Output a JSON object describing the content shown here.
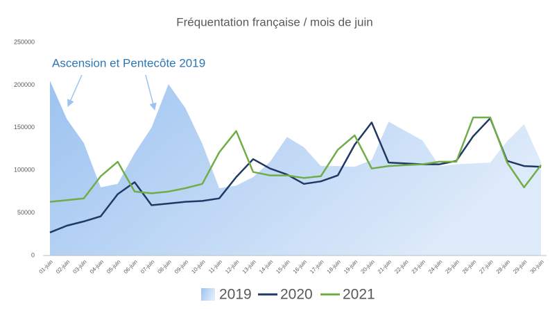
{
  "chart_data": {
    "type": "line",
    "title": "Fréquentation française /  mois de juin",
    "annotation": "Ascension et Pentecôte 2019",
    "categories": [
      "01-juin",
      "02-juin",
      "03-juin",
      "04-juin",
      "05-juin",
      "06-juin",
      "07-juin",
      "08-juin",
      "09-juin",
      "10-juin",
      "11-juin",
      "12-juin",
      "13-juin",
      "14-juin",
      "15-juin",
      "16-juin",
      "17-juin",
      "18-juin",
      "19-juin",
      "20-juin",
      "21-juin",
      "22-juin",
      "23-juin",
      "24-juin",
      "25-juin",
      "26-juin",
      "27-juin",
      "28-juin",
      "29-juin",
      "30-juin"
    ],
    "series": [
      {
        "name": "2019",
        "kind": "area",
        "color": "#9dc3f0",
        "values": [
          205000,
          160000,
          132000,
          80000,
          84000,
          120000,
          150000,
          201000,
          173000,
          131000,
          79000,
          82000,
          92000,
          110000,
          139000,
          127000,
          105000,
          105000,
          104000,
          112000,
          157000,
          146000,
          135000,
          105000,
          107000,
          108000,
          109000,
          134000,
          154000,
          110000
        ]
      },
      {
        "name": "2020",
        "kind": "line",
        "color": "#1f3864",
        "values": [
          27000,
          35000,
          40000,
          46000,
          72000,
          86000,
          59000,
          61000,
          63000,
          64000,
          67000,
          92000,
          113000,
          102000,
          95000,
          84000,
          87000,
          94000,
          130000,
          156000,
          109000,
          108000,
          107000,
          107000,
          111000,
          140000,
          161000,
          111000,
          105000,
          104000
        ]
      },
      {
        "name": "2021",
        "kind": "line",
        "color": "#70ad47",
        "values": [
          63000,
          65000,
          67000,
          93000,
          110000,
          75000,
          73000,
          75000,
          79000,
          84000,
          121000,
          146000,
          98000,
          94000,
          94000,
          91000,
          93000,
          124000,
          141000,
          102000,
          105000,
          106000,
          107000,
          110000,
          110000,
          162000,
          162000,
          109000,
          80000,
          106000
        ]
      }
    ],
    "ylim": [
      0,
      250000
    ],
    "yticks": [
      0,
      50000,
      100000,
      150000,
      200000,
      250000
    ],
    "grid": false,
    "legend": "bottom"
  }
}
